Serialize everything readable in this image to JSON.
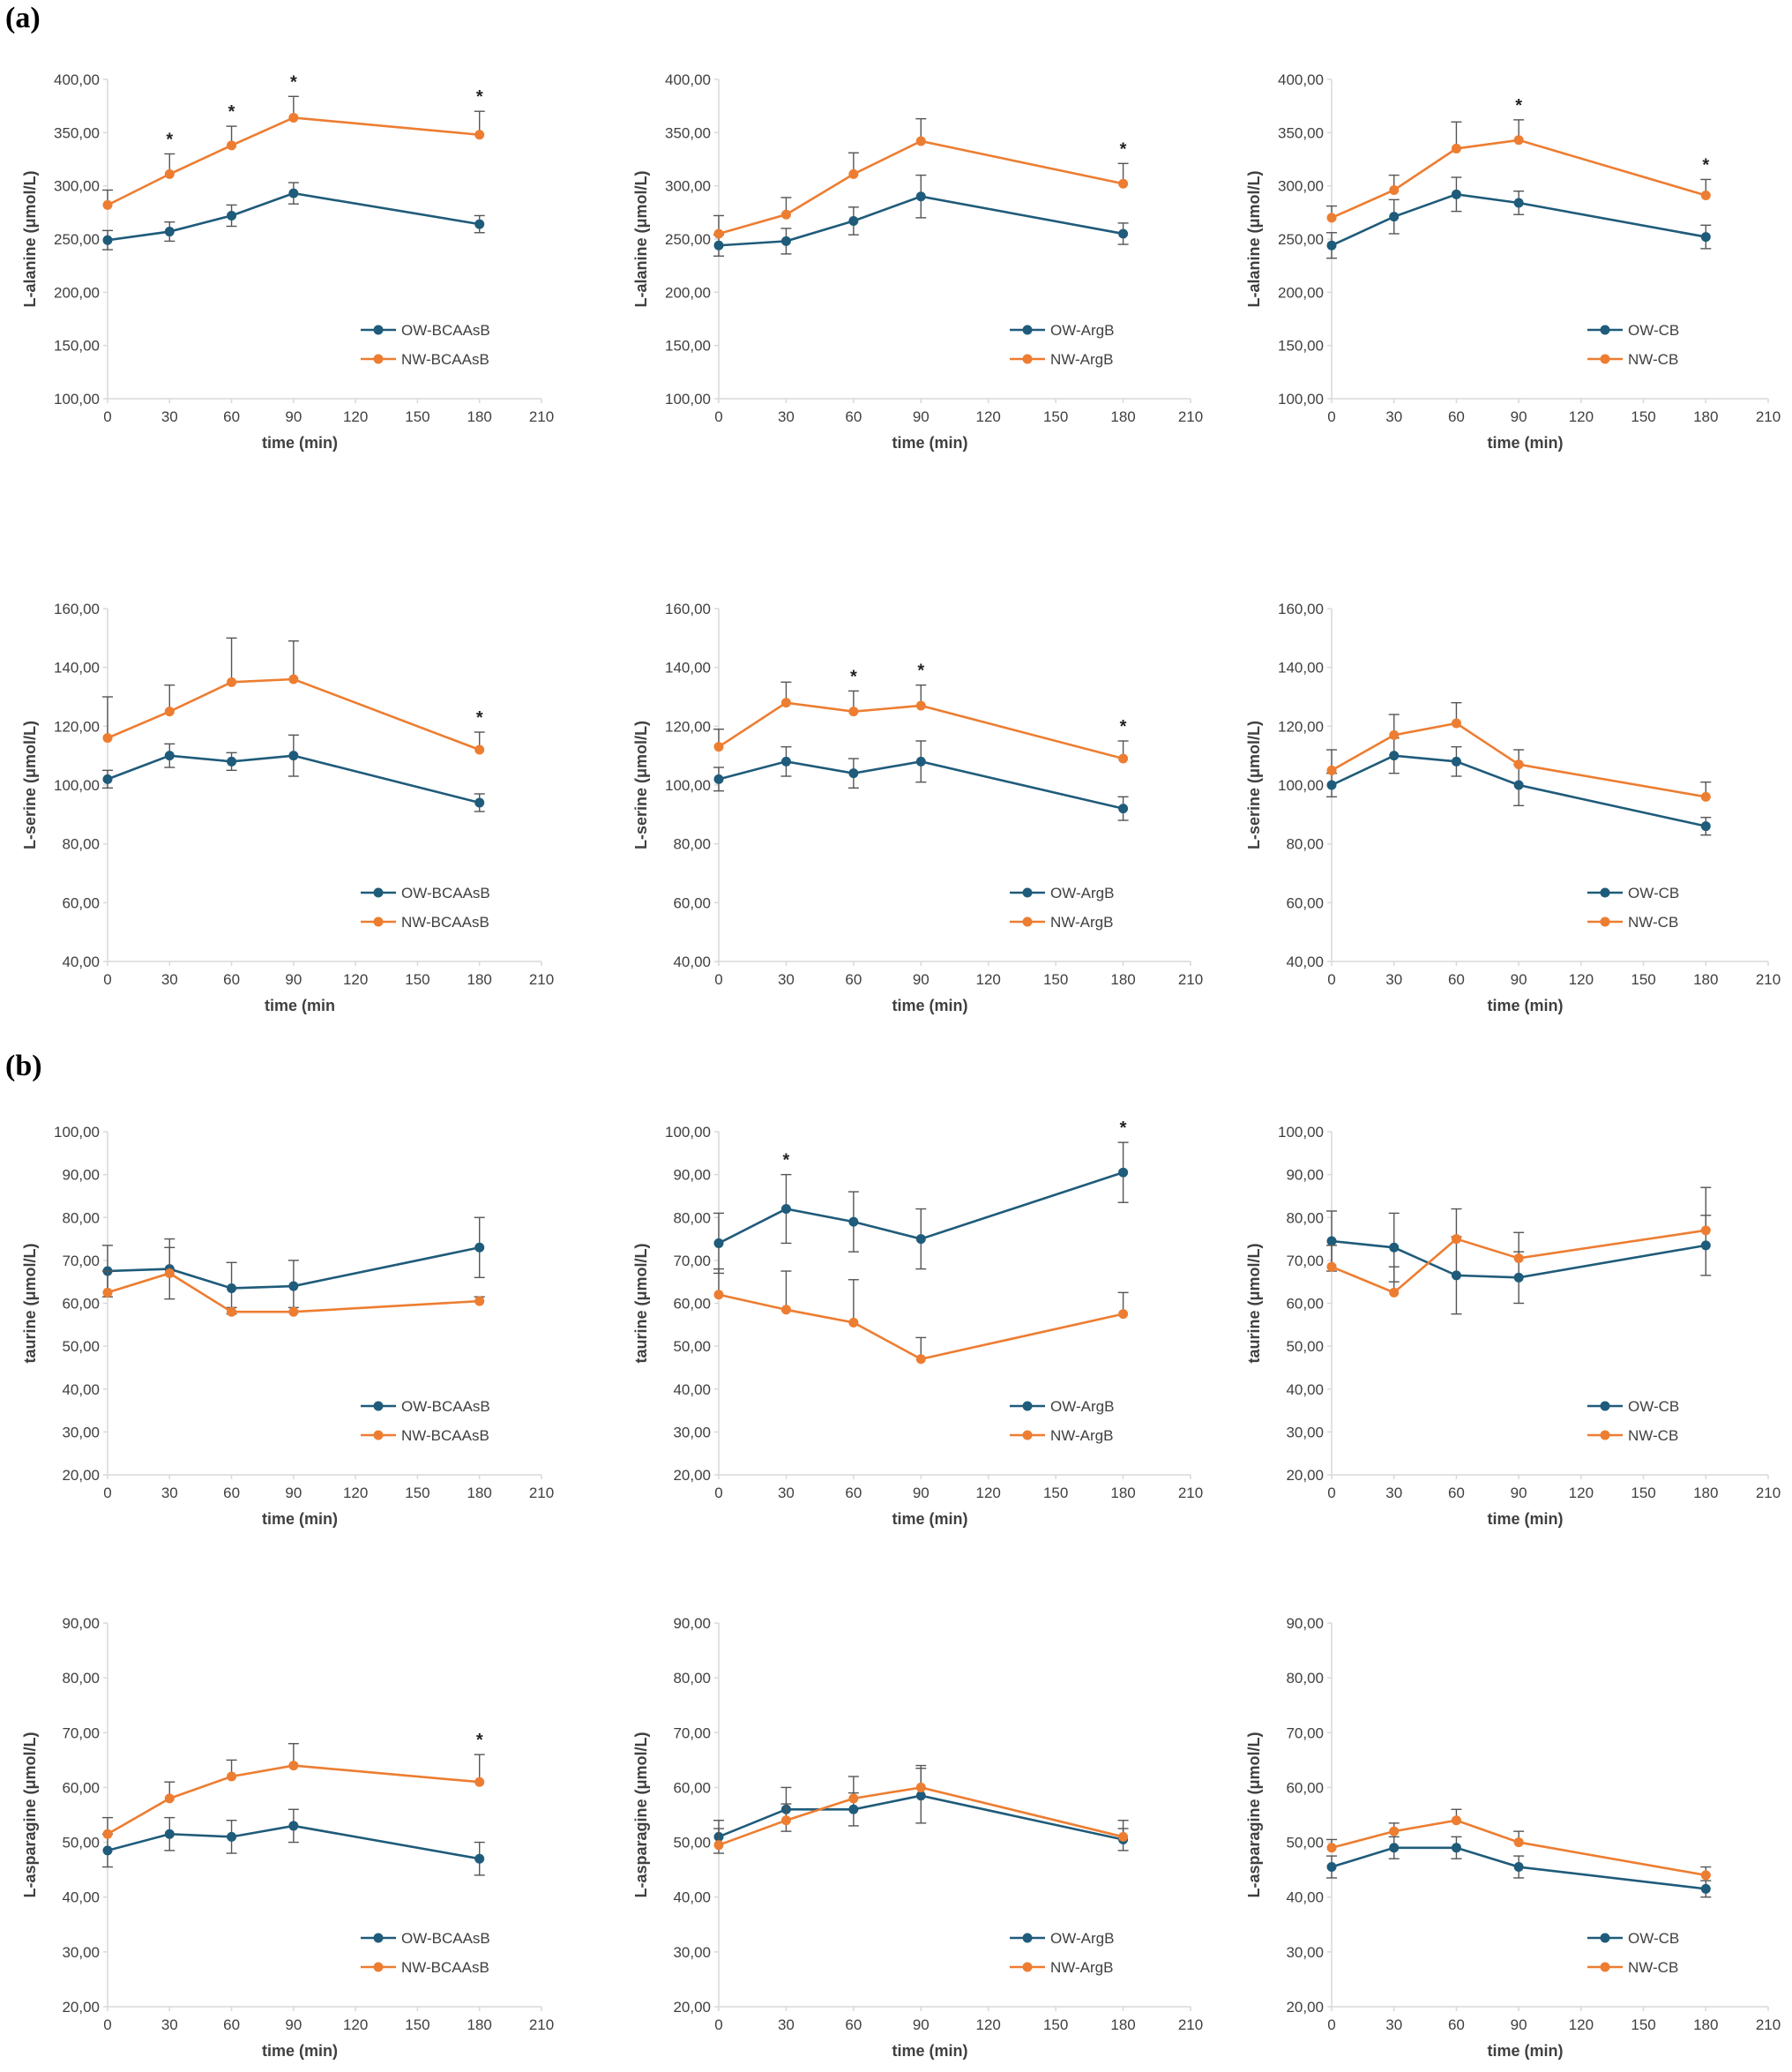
{
  "panel_labels": [
    "(a)",
    "(b)"
  ],
  "colors": {
    "ow": "#1f5b7a",
    "nw": "#ed7d31",
    "axis": "#d9d9d9",
    "text": "#404040"
  },
  "chart_data": [
    {
      "type": "line",
      "xlabel": "time (min)",
      "ylabel": "L-alanine (μmol/L)",
      "xlim": [
        0,
        210
      ],
      "xticks": [
        0,
        30,
        60,
        90,
        120,
        150,
        180,
        210
      ],
      "ylim": [
        100,
        400
      ],
      "yticks": [
        100,
        150,
        200,
        250,
        300,
        350,
        400
      ],
      "grid": false,
      "legend": "bottom-right",
      "x": [
        0,
        30,
        60,
        90,
        180
      ],
      "series": [
        {
          "name": "OW-BCAAsB",
          "values": [
            249,
            257,
            272,
            293,
            264
          ],
          "errors": [
            9,
            9,
            10,
            10,
            8
          ]
        },
        {
          "name": "NW-BCAAsB",
          "values": [
            282,
            311,
            338,
            364,
            348
          ],
          "errors": [
            14,
            19,
            18,
            20,
            22
          ]
        }
      ],
      "significant_x": [
        30,
        60,
        90,
        180
      ]
    },
    {
      "type": "line",
      "xlabel": "time (min)",
      "ylabel": "L-alanine (μmol/L)",
      "xlim": [
        0,
        210
      ],
      "xticks": [
        0,
        30,
        60,
        90,
        120,
        150,
        180,
        210
      ],
      "ylim": [
        100,
        400
      ],
      "yticks": [
        100,
        150,
        200,
        250,
        300,
        350,
        400
      ],
      "grid": false,
      "legend": "bottom-right",
      "x": [
        0,
        30,
        60,
        90,
        180
      ],
      "series": [
        {
          "name": "OW-ArgB",
          "values": [
            244,
            248,
            267,
            290,
            255
          ],
          "errors": [
            10,
            12,
            13,
            20,
            10
          ]
        },
        {
          "name": "NW-ArgB",
          "values": [
            255,
            273,
            311,
            342,
            302
          ],
          "errors": [
            17,
            16,
            20,
            21,
            19
          ]
        }
      ],
      "significant_x": [
        180
      ]
    },
    {
      "type": "line",
      "xlabel": "time (min)",
      "ylabel": "L-alanine (μmol/L)",
      "xlim": [
        0,
        210
      ],
      "xticks": [
        0,
        30,
        60,
        90,
        120,
        150,
        180,
        210
      ],
      "ylim": [
        100,
        400
      ],
      "yticks": [
        100,
        150,
        200,
        250,
        300,
        350,
        400
      ],
      "grid": false,
      "legend": "bottom-right",
      "x": [
        0,
        30,
        60,
        90,
        180
      ],
      "series": [
        {
          "name": "OW-CB",
          "values": [
            244,
            271,
            292,
            284,
            252
          ],
          "errors": [
            12,
            16,
            16,
            11,
            11
          ]
        },
        {
          "name": "NW-CB",
          "values": [
            270,
            296,
            335,
            343,
            291
          ],
          "errors": [
            11,
            14,
            25,
            19,
            15
          ]
        }
      ],
      "significant_x": [
        90,
        180
      ]
    },
    {
      "type": "line",
      "xlabel": "time (min",
      "ylabel": "L-serine (μmol/L)",
      "xlim": [
        0,
        210
      ],
      "xticks": [
        0,
        30,
        60,
        90,
        120,
        150,
        180,
        210
      ],
      "ylim": [
        40,
        160
      ],
      "yticks": [
        40,
        60,
        80,
        100,
        120,
        140,
        160
      ],
      "grid": false,
      "legend": "bottom-right",
      "x": [
        0,
        30,
        60,
        90,
        180
      ],
      "series": [
        {
          "name": "OW-BCAAsB",
          "values": [
            102,
            110,
            108,
            110,
            94
          ],
          "errors": [
            3,
            4,
            3,
            7,
            3
          ]
        },
        {
          "name": "NW-BCAAsB",
          "values": [
            116,
            125,
            135,
            136,
            112
          ],
          "errors": [
            14,
            9,
            15,
            13,
            6
          ]
        }
      ],
      "significant_x": [
        180
      ]
    },
    {
      "type": "line",
      "xlabel": "time (min)",
      "ylabel": "L-serine (μmol/L)",
      "xlim": [
        0,
        210
      ],
      "xticks": [
        0,
        30,
        60,
        90,
        120,
        150,
        180,
        210
      ],
      "ylim": [
        40,
        160
      ],
      "yticks": [
        40,
        60,
        80,
        100,
        120,
        140,
        160
      ],
      "grid": false,
      "legend": "bottom-right",
      "x": [
        0,
        30,
        60,
        90,
        180
      ],
      "series": [
        {
          "name": "OW-ArgB",
          "values": [
            102,
            108,
            104,
            108,
            92
          ],
          "errors": [
            4,
            5,
            5,
            7,
            4
          ]
        },
        {
          "name": "NW-ArgB",
          "values": [
            113,
            128,
            125,
            127,
            109
          ],
          "errors": [
            6,
            7,
            7,
            7,
            6
          ]
        }
      ],
      "significant_x": [
        60,
        90,
        180
      ]
    },
    {
      "type": "line",
      "xlabel": "time (min)",
      "ylabel": "L-serine (μmol/L)",
      "xlim": [
        0,
        210
      ],
      "xticks": [
        0,
        30,
        60,
        90,
        120,
        150,
        180,
        210
      ],
      "ylim": [
        40,
        160
      ],
      "yticks": [
        40,
        60,
        80,
        100,
        120,
        140,
        160
      ],
      "grid": false,
      "legend": "bottom-right",
      "x": [
        0,
        30,
        60,
        90,
        180
      ],
      "series": [
        {
          "name": "OW-CB",
          "values": [
            100,
            110,
            108,
            100,
            86
          ],
          "errors": [
            4,
            6,
            5,
            7,
            3
          ]
        },
        {
          "name": "NW-CB",
          "values": [
            105,
            117,
            121,
            107,
            96
          ],
          "errors": [
            7,
            7,
            7,
            5,
            5
          ]
        }
      ],
      "significant_x": []
    },
    {
      "type": "line",
      "xlabel": "time (min)",
      "ylabel": "taurine (μmol/L)",
      "xlim": [
        0,
        210
      ],
      "xticks": [
        0,
        30,
        60,
        90,
        120,
        150,
        180,
        210
      ],
      "ylim": [
        20,
        100
      ],
      "yticks": [
        20,
        30,
        40,
        50,
        60,
        70,
        80,
        90,
        100
      ],
      "grid": false,
      "legend": "bottom-right",
      "x": [
        0,
        30,
        60,
        90,
        180
      ],
      "series": [
        {
          "name": "OW-BCAAsB",
          "values": [
            67.5,
            68,
            63.5,
            64,
            73
          ],
          "errors": [
            6,
            7,
            6,
            6,
            7
          ]
        },
        {
          "name": "NW-BCAAsB",
          "values": [
            62.5,
            67,
            58,
            58,
            60.5
          ],
          "errors": [
            5,
            6,
            1,
            1,
            1
          ]
        }
      ],
      "significant_x": []
    },
    {
      "type": "line",
      "xlabel": "time (min)",
      "ylabel": "taurine (μmol/L)",
      "xlim": [
        0,
        210
      ],
      "xticks": [
        0,
        30,
        60,
        90,
        120,
        150,
        180,
        210
      ],
      "ylim": [
        20,
        100
      ],
      "yticks": [
        20,
        30,
        40,
        50,
        60,
        70,
        80,
        90,
        100
      ],
      "grid": false,
      "legend": "bottom-right",
      "x": [
        0,
        30,
        60,
        90,
        180
      ],
      "series": [
        {
          "name": "OW-ArgB",
          "values": [
            74,
            82,
            79,
            75,
            90.5
          ],
          "errors": [
            7,
            8,
            7,
            7,
            7
          ]
        },
        {
          "name": "NW-ArgB",
          "values": [
            62,
            58.5,
            55.5,
            47,
            57.5
          ],
          "errors": [
            6,
            9,
            10,
            5,
            5
          ]
        }
      ],
      "significant_x": [
        30,
        180
      ]
    },
    {
      "type": "line",
      "xlabel": "time (min)",
      "ylabel": "taurine (μmol/L)",
      "xlim": [
        0,
        210
      ],
      "xticks": [
        0,
        30,
        60,
        90,
        120,
        150,
        180,
        210
      ],
      "ylim": [
        20,
        100
      ],
      "yticks": [
        20,
        30,
        40,
        50,
        60,
        70,
        80,
        90,
        100
      ],
      "grid": false,
      "legend": "bottom-right",
      "x": [
        0,
        30,
        60,
        90,
        180
      ],
      "series": [
        {
          "name": "OW-CB",
          "values": [
            74.5,
            73,
            66.5,
            66,
            73.5
          ],
          "errors": [
            7,
            8,
            9,
            6,
            7
          ]
        },
        {
          "name": "NW-CB",
          "values": [
            68.5,
            62.5,
            75,
            70.5,
            77
          ],
          "errors": [
            5,
            6,
            7,
            6,
            10
          ]
        }
      ],
      "significant_x": []
    },
    {
      "type": "line",
      "xlabel": "time (min)",
      "ylabel": "L-asparagine (μmol/L)",
      "xlim": [
        0,
        210
      ],
      "xticks": [
        0,
        30,
        60,
        90,
        120,
        150,
        180,
        210
      ],
      "ylim": [
        20,
        90
      ],
      "yticks": [
        20,
        30,
        40,
        50,
        60,
        70,
        80,
        90
      ],
      "grid": false,
      "legend": "bottom-right",
      "x": [
        0,
        30,
        60,
        90,
        180
      ],
      "series": [
        {
          "name": "OW-BCAAsB",
          "values": [
            48.5,
            51.5,
            51,
            53,
            47
          ],
          "errors": [
            3,
            3,
            3,
            3,
            3
          ]
        },
        {
          "name": "NW-BCAAsB",
          "values": [
            51.5,
            58,
            62,
            64,
            61
          ],
          "errors": [
            3,
            3,
            3,
            4,
            5
          ]
        }
      ],
      "significant_x": [
        180
      ]
    },
    {
      "type": "line",
      "xlabel": "time (min)",
      "ylabel": "L-asparagine (μmol/L)",
      "xlim": [
        0,
        210
      ],
      "xticks": [
        0,
        30,
        60,
        90,
        120,
        150,
        180,
        210
      ],
      "ylim": [
        20,
        90
      ],
      "yticks": [
        20,
        30,
        40,
        50,
        60,
        70,
        80,
        90
      ],
      "grid": false,
      "legend": "bottom-right",
      "x": [
        0,
        30,
        60,
        90,
        180
      ],
      "series": [
        {
          "name": "OW-ArgB",
          "values": [
            51,
            56,
            56,
            58.5,
            50.5
          ],
          "errors": [
            3,
            4,
            3,
            5,
            2
          ]
        },
        {
          "name": "NW-ArgB",
          "values": [
            49.5,
            54,
            58,
            60,
            51
          ],
          "errors": [
            3,
            3,
            4,
            4,
            3
          ]
        }
      ],
      "significant_x": []
    },
    {
      "type": "line",
      "xlabel": "time (min)",
      "ylabel": "L-asparagine (μmol/L)",
      "xlim": [
        0,
        210
      ],
      "xticks": [
        0,
        30,
        60,
        90,
        120,
        150,
        180,
        210
      ],
      "ylim": [
        20,
        90
      ],
      "yticks": [
        20,
        30,
        40,
        50,
        60,
        70,
        80,
        90
      ],
      "grid": false,
      "legend": "bottom-right",
      "x": [
        0,
        30,
        60,
        90,
        180
      ],
      "series": [
        {
          "name": "OW-CB",
          "values": [
            45.5,
            49,
            49,
            45.5,
            41.5
          ],
          "errors": [
            2,
            2,
            2,
            2,
            1.5
          ]
        },
        {
          "name": "NW-CB",
          "values": [
            49,
            52,
            54,
            50,
            44
          ],
          "errors": [
            1.5,
            1.5,
            2,
            2,
            1.5
          ]
        }
      ],
      "significant_x": []
    }
  ]
}
